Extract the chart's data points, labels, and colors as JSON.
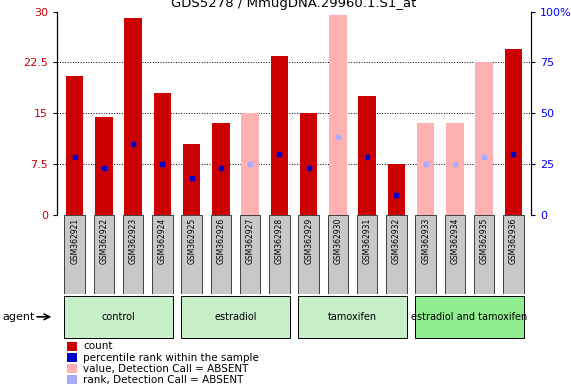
{
  "title": "GDS5278 / MmugDNA.29960.1.S1_at",
  "samples": [
    "GSM362921",
    "GSM362922",
    "GSM362923",
    "GSM362924",
    "GSM362925",
    "GSM362926",
    "GSM362927",
    "GSM362928",
    "GSM362929",
    "GSM362930",
    "GSM362931",
    "GSM362932",
    "GSM362933",
    "GSM362934",
    "GSM362935",
    "GSM362936"
  ],
  "count_values": [
    20.5,
    14.5,
    29.0,
    18.0,
    10.5,
    13.5,
    null,
    23.5,
    15.0,
    null,
    17.5,
    7.5,
    null,
    null,
    null,
    24.5
  ],
  "absent_values": [
    null,
    null,
    null,
    null,
    null,
    null,
    15.0,
    null,
    null,
    29.5,
    null,
    null,
    13.5,
    13.5,
    22.5,
    null
  ],
  "percentile_rank": [
    8.5,
    7.0,
    10.5,
    7.5,
    5.5,
    7.0,
    null,
    9.0,
    7.0,
    null,
    8.5,
    3.0,
    null,
    null,
    null,
    9.0
  ],
  "absent_rank": [
    null,
    null,
    null,
    null,
    null,
    null,
    7.5,
    null,
    null,
    11.5,
    null,
    null,
    7.5,
    7.5,
    8.5,
    null
  ],
  "group_labels": [
    "control",
    "estradiol",
    "tamoxifen",
    "estradiol and tamoxifen"
  ],
  "group_ranges": [
    [
      0,
      4
    ],
    [
      4,
      8
    ],
    [
      8,
      12
    ],
    [
      12,
      16
    ]
  ],
  "group_colors": [
    "#c8f0c8",
    "#c8f0c8",
    "#c8f0c8",
    "#90ee90"
  ],
  "ylim_left": [
    0,
    30
  ],
  "ylim_right": [
    0,
    100
  ],
  "yticks_left": [
    0,
    7.5,
    15,
    22.5,
    30
  ],
  "yticks_right": [
    0,
    25,
    50,
    75,
    100
  ],
  "ytick_labels_left": [
    "0",
    "7.5",
    "15",
    "22.5",
    "30"
  ],
  "ytick_labels_right": [
    "0",
    "25",
    "50",
    "75",
    "100%"
  ],
  "count_color": "#cc0000",
  "absent_bar_color": "#ffb0b0",
  "rank_color": "#0000cc",
  "absent_rank_color": "#aaaaff",
  "bg_color": "#ffffff",
  "sample_cell_color": "#c8c8c8",
  "bar_width": 0.6,
  "xlim": [
    -0.6,
    15.6
  ]
}
